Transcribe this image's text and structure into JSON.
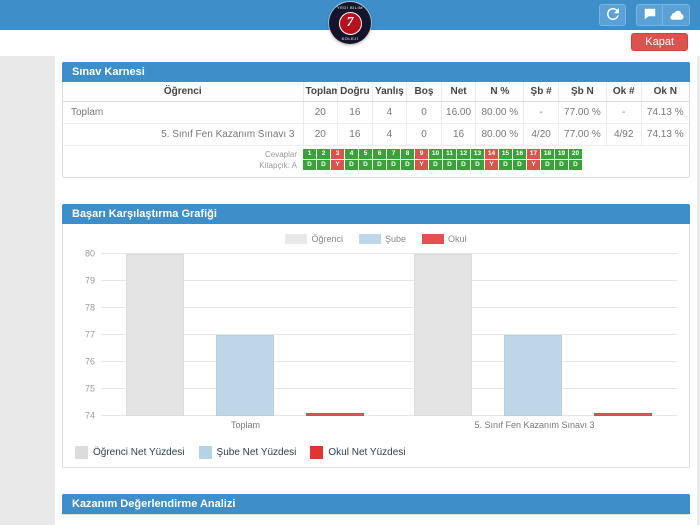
{
  "theme": {
    "accent": "#3d8ec9",
    "accent_light": "#5aa2d6",
    "danger": "#d9534f",
    "success": "#3aa23a",
    "page_bg": "#e9e9e9"
  },
  "navbar": {
    "logo": {
      "top": "YEDİ BİLİM",
      "bottom": "KOLEJİ",
      "number": "7"
    }
  },
  "toolbar": {
    "close_label": "Kapat"
  },
  "exam_panel": {
    "title": "Sınav Karnesi",
    "table": {
      "headers": [
        "Öğrenci",
        "Toplam",
        "Doğru",
        "Yanlış",
        "Boş",
        "Net",
        "N %",
        "Şb #",
        "Şb N",
        "Ok #",
        "Ok N"
      ],
      "rows": [
        [
          "Toplam",
          "20",
          "16",
          "4",
          "0",
          "16.00",
          "80.00 %",
          "-",
          "77.00 %",
          "-",
          "74.13 %"
        ],
        [
          "5. Sınıf Fen Kazanım Sınavı 3",
          "20",
          "16",
          "4",
          "0",
          "16",
          "80.00 %",
          "4/20",
          "77.00 %",
          "4/92",
          "74.13 %"
        ]
      ]
    },
    "answers": {
      "label_top": "Cevaplar",
      "label_bottom": "Kitapçık: A",
      "numbers": [
        "1",
        "2",
        "3",
        "4",
        "5",
        "6",
        "7",
        "8",
        "9",
        "10",
        "11",
        "12",
        "13",
        "14",
        "15",
        "16",
        "17",
        "18",
        "19",
        "20"
      ],
      "letters": [
        "D",
        "D",
        "Y",
        "D",
        "D",
        "D",
        "D",
        "D",
        "Y",
        "D",
        "D",
        "D",
        "D",
        "Y",
        "D",
        "D",
        "Y",
        "D",
        "D",
        "D"
      ],
      "wrong_positions": [
        3,
        9,
        14,
        17
      ]
    }
  },
  "chart_panel": {
    "title": "Başarı Karşılaştırma Grafiği",
    "legend_top": [
      {
        "label": "Öğrenci",
        "color": "#e8e8e8"
      },
      {
        "label": "Şube",
        "color": "#bdd7e8"
      },
      {
        "label": "Okul",
        "color": "#e05252"
      }
    ],
    "legend_bottom": [
      {
        "label": "Öğrenci Net Yüzdesi",
        "color": "#dcdcdc"
      },
      {
        "label": "Şube Net Yüzdesi",
        "color": "#b6d3e5"
      },
      {
        "label": "Okul Net Yüzdesi",
        "color": "#e03535"
      }
    ]
  },
  "chart_data": {
    "type": "bar",
    "title": "Başarı Karşılaştırma Grafiği",
    "categories": [
      "Toplam",
      "5. Sınıf Fen Kazanım Sınavı 3"
    ],
    "series": [
      {
        "name": "Öğrenci",
        "values": [
          80,
          80
        ],
        "color": "#e4e4e4"
      },
      {
        "name": "Şube",
        "values": [
          77,
          77
        ],
        "color": "#bdd7e8"
      },
      {
        "name": "Okul",
        "values": [
          74.13,
          74.13
        ],
        "color": "#e05252"
      }
    ],
    "ylim": [
      74,
      80
    ],
    "yticks": [
      74,
      75,
      76,
      77,
      78,
      79,
      80
    ],
    "grid": true,
    "legend_position": "top"
  },
  "analysis_panel": {
    "title": "Kazanım Değerlendirme Analizi"
  }
}
